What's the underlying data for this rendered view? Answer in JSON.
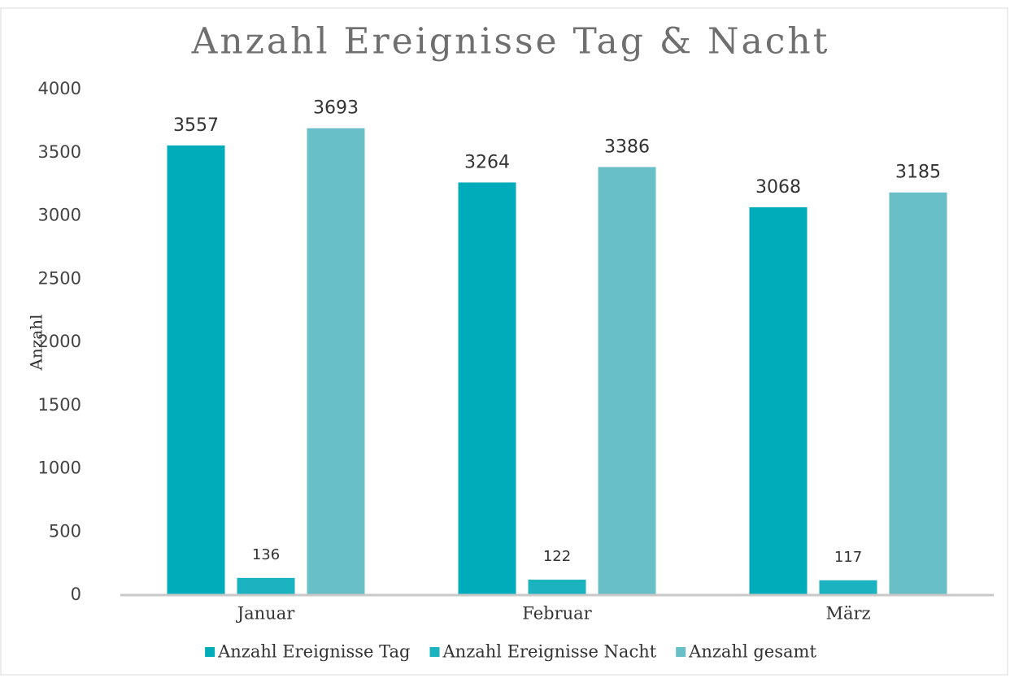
{
  "chart_data": {
    "type": "bar",
    "title": "Anzahl Ereignisse Tag & Nacht",
    "y_label": "Anzahl",
    "categories": [
      "Januar",
      "Februar",
      "März"
    ],
    "series": [
      {
        "name": "Anzahl Ereignisse Tag",
        "color": "#00acb9",
        "values": [
          3557,
          3264,
          3068
        ]
      },
      {
        "name": "Anzahl Ereignisse Nacht",
        "color": "#1bb3bf",
        "values": [
          136,
          122,
          117
        ]
      },
      {
        "name": "Anzahl gesamt",
        "color": "#69bfc7",
        "values": [
          3693,
          3386,
          3185
        ]
      }
    ],
    "ylim": [
      0,
      4000
    ],
    "yticks": [
      0,
      500,
      1000,
      1500,
      2000,
      2500,
      3000,
      3500,
      4000
    ],
    "grid": false,
    "legend": "bottom"
  }
}
